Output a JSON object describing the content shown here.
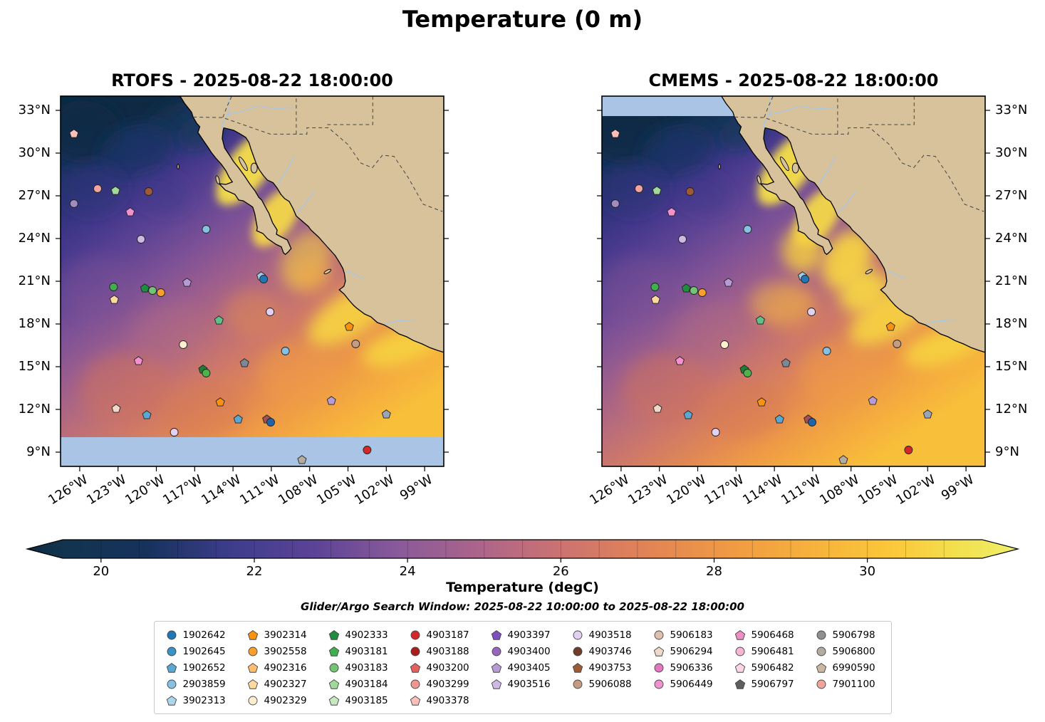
{
  "title": "Temperature (0 m)",
  "panels": [
    {
      "id": "rtofs",
      "title": "RTOFS - 2025-08-22 18:00:00"
    },
    {
      "id": "cmems",
      "title": "CMEMS - 2025-08-22 18:00:00"
    }
  ],
  "subtitle": "Glider/Argo Search Window: 2025-08-22 10:00:00 to 2025-08-22 18:00:00",
  "axes": {
    "lat_ticks": [
      {
        "deg": 33,
        "label": "33°N"
      },
      {
        "deg": 30,
        "label": "30°N"
      },
      {
        "deg": 27,
        "label": "27°N"
      },
      {
        "deg": 24,
        "label": "24°N"
      },
      {
        "deg": 21,
        "label": "21°N"
      },
      {
        "deg": 18,
        "label": "18°N"
      },
      {
        "deg": 15,
        "label": "15°N"
      },
      {
        "deg": 12,
        "label": "12°N"
      },
      {
        "deg": 9,
        "label": "9°N"
      }
    ],
    "lon_ticks": [
      {
        "deg": -126,
        "label": "126°W"
      },
      {
        "deg": -123,
        "label": "123°W"
      },
      {
        "deg": -120,
        "label": "120°W"
      },
      {
        "deg": -117,
        "label": "117°W"
      },
      {
        "deg": -114,
        "label": "114°W"
      },
      {
        "deg": -111,
        "label": "111°W"
      },
      {
        "deg": -108,
        "label": "108°W"
      },
      {
        "deg": -105,
        "label": "105°W"
      },
      {
        "deg": -102,
        "label": "102°W"
      },
      {
        "deg": -99,
        "label": "99°W"
      }
    ]
  },
  "colorbar": {
    "label": "Temperature (degC)",
    "vmin": 19.5,
    "vmax": 31.5,
    "extend": "both",
    "ticks": [
      20,
      22,
      24,
      26,
      28,
      30
    ],
    "stops": [
      {
        "t": 0.0,
        "c": "#0b2c41"
      },
      {
        "t": 0.04,
        "c": "#12344f"
      },
      {
        "t": 0.12,
        "c": "#16325c"
      },
      {
        "t": 0.21,
        "c": "#3f3d8d"
      },
      {
        "t": 0.29,
        "c": "#5c4396"
      },
      {
        "t": 0.375,
        "c": "#8a5a9a"
      },
      {
        "t": 0.46,
        "c": "#ad6589"
      },
      {
        "t": 0.54,
        "c": "#cc7371"
      },
      {
        "t": 0.62,
        "c": "#e08257"
      },
      {
        "t": 0.71,
        "c": "#f09a43"
      },
      {
        "t": 0.79,
        "c": "#f6b13c"
      },
      {
        "t": 0.875,
        "c": "#fac83a"
      },
      {
        "t": 0.94,
        "c": "#f3e04e"
      },
      {
        "t": 1.0,
        "c": "#eef06a"
      }
    ]
  },
  "colors": {
    "land": "#d8c29b",
    "coastline": "#000000",
    "no_data": "#a9c4e4",
    "border_dash": "#444444",
    "river": "#a7c7e7"
  },
  "legend": {
    "columns": [
      [
        {
          "id": "1902642",
          "shape": "circle",
          "color": "#1f77b4"
        },
        {
          "id": "1902645",
          "shape": "circle",
          "color": "#3a92c5"
        },
        {
          "id": "1902652",
          "shape": "pentagon",
          "color": "#5aa7d1"
        },
        {
          "id": "2903859",
          "shape": "circle",
          "color": "#85c1e2"
        },
        {
          "id": "3902313",
          "shape": "pentagon",
          "color": "#aed6ea"
        }
      ],
      [
        {
          "id": "3902314",
          "shape": "pentagon",
          "color": "#f9920e"
        },
        {
          "id": "3902558",
          "shape": "circle",
          "color": "#f9a02c"
        },
        {
          "id": "4902316",
          "shape": "pentagon",
          "color": "#fdbf6f"
        },
        {
          "id": "4902327",
          "shape": "pentagon",
          "color": "#fdd9a0"
        },
        {
          "id": "4902329",
          "shape": "circle",
          "color": "#fdeecd"
        }
      ],
      [
        {
          "id": "4902333",
          "shape": "pentagon",
          "color": "#1e8e3e"
        },
        {
          "id": "4903181",
          "shape": "pentagon",
          "color": "#3faf4f"
        },
        {
          "id": "4903183",
          "shape": "circle",
          "color": "#74c476"
        },
        {
          "id": "4903184",
          "shape": "pentagon",
          "color": "#a1d99b"
        },
        {
          "id": "4903185",
          "shape": "pentagon",
          "color": "#c7e9c0"
        }
      ],
      [
        {
          "id": "4903187",
          "shape": "circle",
          "color": "#d62728"
        },
        {
          "id": "4903188",
          "shape": "circle",
          "color": "#a81e1e"
        },
        {
          "id": "4903200",
          "shape": "pentagon",
          "color": "#e4605e"
        },
        {
          "id": "4903299",
          "shape": "circle",
          "color": "#f49690"
        },
        {
          "id": "4903378",
          "shape": "pentagon",
          "color": "#fbc0ba"
        }
      ],
      [
        {
          "id": "4903397",
          "shape": "pentagon",
          "color": "#7e4fc1"
        },
        {
          "id": "4903400",
          "shape": "circle",
          "color": "#9467bd"
        },
        {
          "id": "4903405",
          "shape": "pentagon",
          "color": "#b79bd4"
        },
        {
          "id": "4903516",
          "shape": "pentagon",
          "color": "#cdb9e4"
        }
      ],
      [
        {
          "id": "4903518",
          "shape": "circle",
          "color": "#e2d1f0"
        },
        {
          "id": "4903746",
          "shape": "circle",
          "color": "#703c28"
        },
        {
          "id": "4903753",
          "shape": "pentagon",
          "color": "#9c5a36"
        },
        {
          "id": "5906088",
          "shape": "circle",
          "color": "#c59b82"
        }
      ],
      [
        {
          "id": "5906183",
          "shape": "circle",
          "color": "#e0c0ac"
        },
        {
          "id": "5906294",
          "shape": "pentagon",
          "color": "#efd9c9"
        },
        {
          "id": "5906336",
          "shape": "circle",
          "color": "#e377c2"
        },
        {
          "id": "5906449",
          "shape": "circle",
          "color": "#f191cf"
        }
      ],
      [
        {
          "id": "5906468",
          "shape": "pentagon",
          "color": "#ef8ec4"
        },
        {
          "id": "5906481",
          "shape": "circle",
          "color": "#f7b6d2"
        },
        {
          "id": "5906482",
          "shape": "pentagon",
          "color": "#fbd5e6"
        },
        {
          "id": "5906797",
          "shape": "pentagon",
          "color": "#5f5f5f"
        }
      ],
      [
        {
          "id": "5906798",
          "shape": "circle",
          "color": "#909090"
        },
        {
          "id": "5906800",
          "shape": "circle",
          "color": "#b4aca0"
        },
        {
          "id": "6990590",
          "shape": "pentagon",
          "color": "#cbb8a0"
        },
        {
          "id": "7901100",
          "shape": "circle",
          "color": "#f4a49e"
        }
      ]
    ]
  },
  "chart_data": {
    "type": "heatmap",
    "title": "Temperature (0 m)",
    "variable": "Temperature",
    "units": "degC",
    "depth_m": 0,
    "search_window": {
      "start": "2025-08-22 10:00:00",
      "end": "2025-08-22 18:00:00"
    },
    "extent": {
      "lon_min": -127.5,
      "lon_max": -97.5,
      "lat_min": 8,
      "lat_max": 34
    },
    "lat_ticks_deg": [
      9,
      12,
      15,
      18,
      21,
      24,
      27,
      30,
      33
    ],
    "lon_ticks_deg": [
      -126,
      -123,
      -120,
      -117,
      -114,
      -111,
      -108,
      -105,
      -102,
      -99
    ],
    "colorbar": {
      "label": "Temperature (degC)",
      "ticks": [
        20,
        22,
        24,
        26,
        28,
        30
      ],
      "vmin": 19.5,
      "vmax": 31.5,
      "extend": "both"
    },
    "panels": [
      {
        "model": "RTOFS",
        "valid_time": "2025-08-22 18:00:00",
        "no_data_band": "south"
      },
      {
        "model": "CMEMS",
        "valid_time": "2025-08-22 18:00:00",
        "no_data_band": "north"
      }
    ],
    "markers": [
      {
        "lon": -126.45,
        "lat": 31.35,
        "shape": "pentagon",
        "color": "#fbc0ba"
      },
      {
        "lon": -126.45,
        "lat": 26.45,
        "shape": "circle",
        "color": "#a08cc0"
      },
      {
        "lon": -124.6,
        "lat": 27.5,
        "shape": "circle",
        "color": "#f4a49e"
      },
      {
        "lon": -123.2,
        "lat": 27.35,
        "shape": "pentagon",
        "color": "#a1d99b"
      },
      {
        "lon": -120.6,
        "lat": 27.3,
        "shape": "circle",
        "color": "#9c5a36"
      },
      {
        "lon": -122.05,
        "lat": 25.85,
        "shape": "pentagon",
        "color": "#f191cf"
      },
      {
        "lon": -116.1,
        "lat": 24.65,
        "shape": "circle",
        "color": "#85c1e2"
      },
      {
        "lon": -121.2,
        "lat": 23.95,
        "shape": "circle",
        "color": "#cdb9e4"
      },
      {
        "lon": -123.35,
        "lat": 20.6,
        "shape": "circle",
        "color": "#3faf4f"
      },
      {
        "lon": -120.9,
        "lat": 20.5,
        "shape": "pentagon",
        "color": "#1e8e3e"
      },
      {
        "lon": -120.3,
        "lat": 20.35,
        "shape": "circle",
        "color": "#74c476"
      },
      {
        "lon": -119.65,
        "lat": 20.2,
        "shape": "circle",
        "color": "#f9a02c"
      },
      {
        "lon": -117.6,
        "lat": 20.9,
        "shape": "pentagon",
        "color": "#b79bd4"
      },
      {
        "lon": -111.8,
        "lat": 21.35,
        "shape": "pentagon",
        "color": "#9ec9e8"
      },
      {
        "lon": -111.6,
        "lat": 21.15,
        "shape": "circle",
        "color": "#1f77b4"
      },
      {
        "lon": -123.3,
        "lat": 19.7,
        "shape": "pentagon",
        "color": "#fdd9a0"
      },
      {
        "lon": -111.1,
        "lat": 18.85,
        "shape": "circle",
        "color": "#e2d1f0"
      },
      {
        "lon": -115.1,
        "lat": 18.25,
        "shape": "pentagon",
        "color": "#5fc08a"
      },
      {
        "lon": -104.9,
        "lat": 17.8,
        "shape": "pentagon",
        "color": "#f9920e"
      },
      {
        "lon": -117.9,
        "lat": 16.55,
        "shape": "circle",
        "color": "#fdeecd"
      },
      {
        "lon": -109.9,
        "lat": 16.1,
        "shape": "circle",
        "color": "#85c1e2"
      },
      {
        "lon": -104.4,
        "lat": 16.6,
        "shape": "circle",
        "color": "#c59b82"
      },
      {
        "lon": -121.4,
        "lat": 15.4,
        "shape": "pentagon",
        "color": "#f191cf"
      },
      {
        "lon": -113.1,
        "lat": 15.25,
        "shape": "pentagon",
        "color": "#7d8795"
      },
      {
        "lon": -116.35,
        "lat": 14.8,
        "shape": "pentagon",
        "color": "#1e7e34"
      },
      {
        "lon": -116.1,
        "lat": 14.55,
        "shape": "circle",
        "color": "#4bb54b"
      },
      {
        "lon": -115.0,
        "lat": 12.5,
        "shape": "pentagon",
        "color": "#f9920e"
      },
      {
        "lon": -106.3,
        "lat": 12.6,
        "shape": "pentagon",
        "color": "#b79bd4"
      },
      {
        "lon": -123.15,
        "lat": 12.05,
        "shape": "pentagon",
        "color": "#efd9c9"
      },
      {
        "lon": -120.75,
        "lat": 11.6,
        "shape": "pentagon",
        "color": "#5aa7d1"
      },
      {
        "lon": -113.6,
        "lat": 11.3,
        "shape": "pentagon",
        "color": "#5aa7d1"
      },
      {
        "lon": -111.35,
        "lat": 11.3,
        "shape": "pentagon",
        "color": "#a34f55"
      },
      {
        "lon": -111.05,
        "lat": 11.1,
        "shape": "circle",
        "color": "#1f63a8"
      },
      {
        "lon": -102.0,
        "lat": 11.65,
        "shape": "pentagon",
        "color": "#9aa4b8"
      },
      {
        "lon": -118.6,
        "lat": 10.4,
        "shape": "circle",
        "color": "#e2d1f0"
      },
      {
        "lon": -103.5,
        "lat": 9.15,
        "shape": "circle",
        "color": "#d62728"
      },
      {
        "lon": -108.6,
        "lat": 8.45,
        "shape": "pentagon",
        "color": "#b4aca0"
      }
    ]
  }
}
